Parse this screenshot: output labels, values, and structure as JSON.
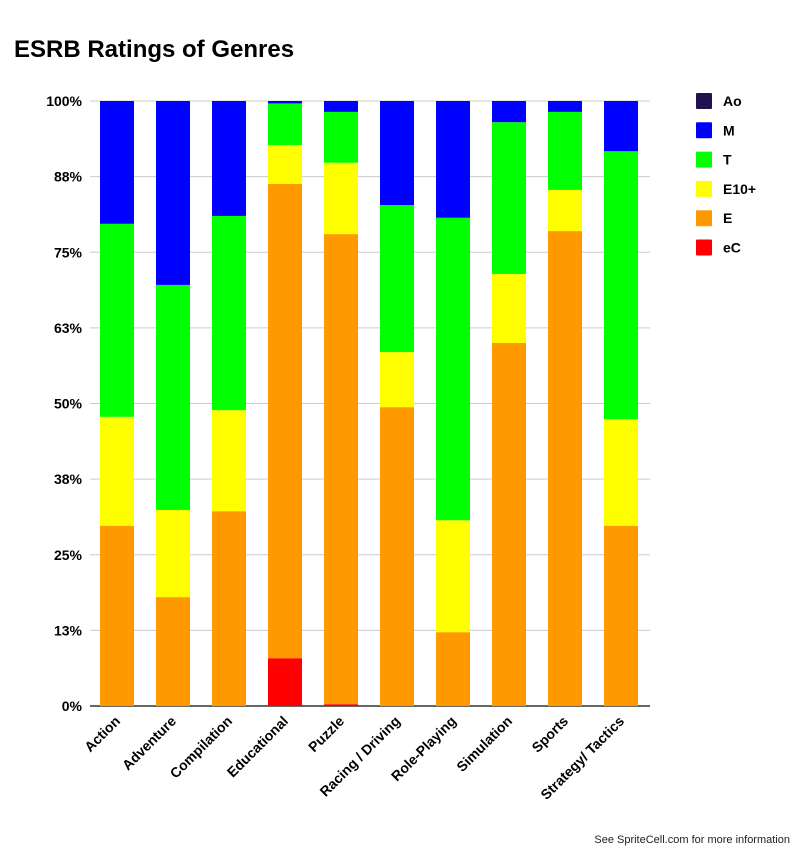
{
  "chart_data": {
    "type": "bar",
    "stacked": true,
    "normalized": true,
    "title": "ESRB Ratings of Genres",
    "xlabel": "",
    "ylabel": "",
    "ylim": [
      0,
      100
    ],
    "yticks": [
      "0%",
      "13%",
      "25%",
      "38%",
      "50%",
      "63%",
      "75%",
      "88%",
      "100%"
    ],
    "grid": true,
    "legend_position": "right",
    "categories": [
      "Action",
      "Adventure",
      "Compilation",
      "Educational",
      "Puzzle",
      "Racing / Driving",
      "Role-Playing",
      "Simulation",
      "Sports",
      "Strategy/ Tactics"
    ],
    "series": [
      {
        "name": "eC",
        "color": "#ff0000",
        "values": [
          0,
          0,
          0,
          7.9,
          0.3,
          0,
          0,
          0,
          0,
          0
        ]
      },
      {
        "name": "E",
        "color": "#ff9900",
        "values": [
          29.8,
          18.0,
          32.2,
          78.4,
          77.7,
          49.4,
          12.2,
          60.0,
          78.5,
          29.8
        ]
      },
      {
        "name": "E10+",
        "color": "#ffff00",
        "values": [
          18.0,
          14.4,
          16.7,
          6.4,
          11.8,
          9.1,
          18.5,
          11.4,
          6.8,
          17.6
        ]
      },
      {
        "name": "T",
        "color": "#00ff00",
        "values": [
          31.9,
          37.2,
          32.1,
          6.9,
          8.4,
          24.3,
          50.0,
          25.1,
          12.9,
          44.3
        ]
      },
      {
        "name": "M",
        "color": "#0000ff",
        "values": [
          20.3,
          30.4,
          19.0,
          0.4,
          1.8,
          17.2,
          19.3,
          3.5,
          1.8,
          8.3
        ]
      },
      {
        "name": "Ao",
        "color": "#20124d",
        "values": [
          0,
          0,
          0,
          0,
          0,
          0,
          0,
          0,
          0,
          0
        ]
      }
    ],
    "legend_order": [
      "Ao",
      "M",
      "T",
      "E10+",
      "E",
      "eC"
    ]
  },
  "footer": "See SpriteCell.com for more information"
}
